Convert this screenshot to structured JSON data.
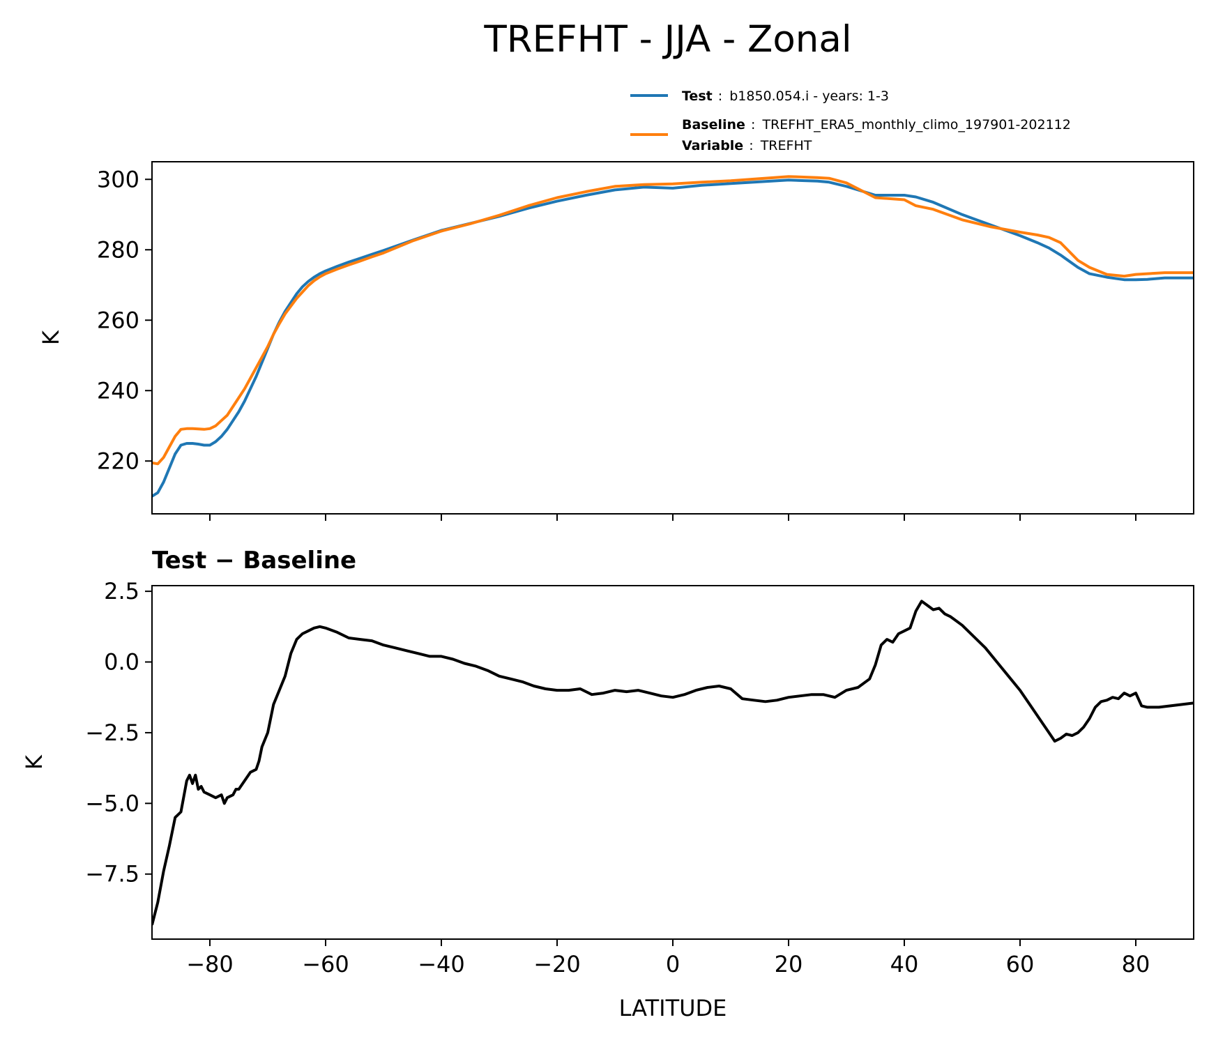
{
  "figure": {
    "title": "TREFHT - JJA - Zonal"
  },
  "legend": {
    "entries": [
      {
        "key": "Test",
        "value": "b1850.054.i - years: 1-3",
        "color": "#1f77b4"
      },
      {
        "key": "Baseline",
        "value": "TREFHT_ERA5_monthly_climo_197901-202112",
        "color": "#ff7f0e"
      },
      {
        "key": "Variable",
        "value": "TREFHT",
        "color": ""
      }
    ],
    "separator": ":"
  },
  "chart_data": [
    {
      "type": "line",
      "panel": "top",
      "title": "",
      "xlabel": "",
      "ylabel": "K",
      "xlim": [
        -90,
        90
      ],
      "ylim": [
        205,
        305
      ],
      "yticks": [
        220,
        240,
        260,
        280,
        300
      ],
      "xticks": [
        -80,
        -60,
        -40,
        -20,
        0,
        20,
        40,
        60,
        80
      ],
      "show_xticklabels": false,
      "grid": false,
      "legend": "above-top-right",
      "series": [
        {
          "name": "Test",
          "color": "#1f77b4",
          "x": [
            -90,
            -89,
            -88,
            -87,
            -86,
            -85,
            -84,
            -83,
            -82,
            -81,
            -80,
            -79,
            -78,
            -77,
            -76,
            -75,
            -74,
            -73,
            -72,
            -71,
            -70,
            -69,
            -68,
            -67,
            -66,
            -65,
            -64,
            -63,
            -62,
            -61,
            -60,
            -58,
            -56,
            -54,
            -52,
            -50,
            -45,
            -40,
            -35,
            -30,
            -25,
            -20,
            -15,
            -10,
            -5,
            0,
            5,
            10,
            15,
            20,
            25,
            27,
            30,
            35,
            40,
            42,
            45,
            50,
            55,
            60,
            63,
            65,
            67,
            70,
            72,
            75,
            78,
            80,
            82,
            85,
            90
          ],
          "values": [
            210,
            211,
            214,
            218,
            222,
            224.5,
            225,
            225,
            224.8,
            224.5,
            224.5,
            225.5,
            227,
            229,
            231.5,
            234,
            237,
            240.5,
            244,
            248,
            252,
            256,
            259.5,
            262.5,
            265,
            267.5,
            269.5,
            271,
            272.2,
            273.2,
            274,
            275.3,
            276.5,
            277.6,
            278.7,
            279.8,
            282.7,
            285.5,
            287.5,
            289.5,
            291.8,
            293.8,
            295.5,
            297,
            297.8,
            297.5,
            298.3,
            298.8,
            299.3,
            299.8,
            299.5,
            299.2,
            298,
            295.5,
            295.5,
            295,
            293.5,
            290,
            287,
            284,
            282,
            280.5,
            278.5,
            275,
            273.2,
            272.2,
            271.5,
            271.5,
            271.6,
            272,
            272
          ]
        },
        {
          "name": "Baseline",
          "color": "#ff7f0e",
          "x": [
            -90,
            -89,
            -88,
            -87,
            -86,
            -85,
            -84,
            -83,
            -82,
            -81,
            -80,
            -79,
            -78,
            -77,
            -76,
            -75,
            -74,
            -73,
            -72,
            -71,
            -70,
            -69,
            -68,
            -67,
            -66,
            -65,
            -64,
            -63,
            -62,
            -61,
            -60,
            -58,
            -56,
            -54,
            -52,
            -50,
            -45,
            -40,
            -35,
            -30,
            -25,
            -20,
            -15,
            -10,
            -5,
            0,
            5,
            10,
            15,
            20,
            25,
            27,
            30,
            35,
            40,
            42,
            45,
            50,
            55,
            60,
            63,
            65,
            67,
            70,
            72,
            75,
            78,
            80,
            82,
            85,
            90
          ],
          "values": [
            219.5,
            219.2,
            221,
            224,
            227,
            229,
            229.2,
            229.2,
            229.1,
            229,
            229.2,
            230,
            231.5,
            233,
            235.5,
            238,
            240.5,
            243.5,
            246.5,
            249.5,
            252.5,
            256,
            259,
            261.8,
            264,
            266.2,
            268,
            269.8,
            271.2,
            272.3,
            273.2,
            274.5,
            275.7,
            276.8,
            278,
            279.1,
            282.5,
            285.3,
            287.4,
            289.8,
            292.5,
            294.8,
            296.5,
            298,
            298.5,
            298.7,
            299.2,
            299.6,
            300.2,
            300.8,
            300.5,
            300.3,
            299,
            294.8,
            294.2,
            292.5,
            291.5,
            288.5,
            286.5,
            285,
            284.2,
            283.5,
            282,
            277,
            275,
            273,
            272.5,
            273,
            273.2,
            273.5,
            273.5
          ]
        }
      ]
    },
    {
      "type": "line",
      "panel": "bottom",
      "title": "Test − Baseline",
      "xlabel": "LATITUDE",
      "ylabel": "K",
      "xlim": [
        -90,
        90
      ],
      "ylim": [
        -9.8,
        2.7
      ],
      "yticks": [
        2.5,
        0.0,
        -2.5,
        -5.0,
        -7.5
      ],
      "ytick_labels": [
        "2.5",
        "0.0",
        "−2.5",
        "−5.0",
        "−7.5"
      ],
      "xticks": [
        -80,
        -60,
        -40,
        -20,
        0,
        20,
        40,
        60,
        80
      ],
      "xtick_labels": [
        "−80",
        "−60",
        "−40",
        "−20",
        "0",
        "20",
        "40",
        "60",
        "80"
      ],
      "grid": false,
      "series": [
        {
          "name": "",
          "color": "#000000",
          "x": [
            -90,
            -89,
            -88,
            -87,
            -86,
            -85,
            -84,
            -83.5,
            -83,
            -82.5,
            -82,
            -81.5,
            -81,
            -80,
            -79,
            -78,
            -77.5,
            -77,
            -76,
            -75.5,
            -75,
            -74,
            -73,
            -72,
            -71.5,
            -71,
            -70,
            -69,
            -68,
            -67,
            -66,
            -65,
            -64,
            -63,
            -62,
            -61,
            -60,
            -58,
            -56,
            -54,
            -52,
            -50,
            -48,
            -46,
            -44,
            -42,
            -40,
            -38,
            -36,
            -34,
            -32,
            -30,
            -28,
            -26,
            -24,
            -22,
            -20,
            -18,
            -16,
            -14,
            -12,
            -10,
            -8,
            -6,
            -4,
            -2,
            0,
            2,
            4,
            6,
            8,
            10,
            12,
            14,
            16,
            18,
            20,
            22,
            24,
            26,
            28,
            30,
            32,
            34,
            35,
            36,
            37,
            38,
            39,
            40,
            41,
            42,
            43,
            44,
            45,
            46,
            47,
            48,
            50,
            52,
            54,
            56,
            58,
            60,
            62,
            64,
            65,
            66,
            67,
            68,
            69,
            70,
            71,
            72,
            73,
            74,
            75,
            76,
            77,
            78,
            79,
            80,
            81,
            82,
            84,
            86,
            88,
            90
          ],
          "values": [
            -9.3,
            -8.5,
            -7.4,
            -6.5,
            -5.5,
            -5.3,
            -4.2,
            -4.0,
            -4.3,
            -4.0,
            -4.5,
            -4.4,
            -4.6,
            -4.7,
            -4.8,
            -4.7,
            -5.0,
            -4.8,
            -4.7,
            -4.5,
            -4.5,
            -4.2,
            -3.9,
            -3.8,
            -3.5,
            -3.0,
            -2.5,
            -1.5,
            -1.0,
            -0.5,
            0.3,
            0.8,
            1.0,
            1.1,
            1.2,
            1.25,
            1.2,
            1.05,
            0.85,
            0.8,
            0.75,
            0.6,
            0.5,
            0.4,
            0.3,
            0.2,
            0.2,
            0.1,
            -0.05,
            -0.15,
            -0.3,
            -0.5,
            -0.6,
            -0.7,
            -0.85,
            -0.95,
            -1.0,
            -1.0,
            -0.95,
            -1.15,
            -1.1,
            -1.0,
            -1.05,
            -1.0,
            -1.1,
            -1.2,
            -1.25,
            -1.15,
            -1.0,
            -0.9,
            -0.85,
            -0.95,
            -1.3,
            -1.35,
            -1.4,
            -1.35,
            -1.25,
            -1.2,
            -1.15,
            -1.15,
            -1.25,
            -1.0,
            -0.9,
            -0.6,
            -0.1,
            0.6,
            0.8,
            0.7,
            1.0,
            1.1,
            1.2,
            1.8,
            2.15,
            2.0,
            1.85,
            1.9,
            1.7,
            1.6,
            1.3,
            0.9,
            0.5,
            0.0,
            -0.5,
            -1.0,
            -1.6,
            -2.2,
            -2.5,
            -2.8,
            -2.7,
            -2.55,
            -2.6,
            -2.5,
            -2.3,
            -2.0,
            -1.6,
            -1.4,
            -1.35,
            -1.25,
            -1.3,
            -1.1,
            -1.2,
            -1.1,
            -1.55,
            -1.6,
            -1.6,
            -1.55,
            -1.5,
            -1.45
          ]
        }
      ]
    }
  ]
}
